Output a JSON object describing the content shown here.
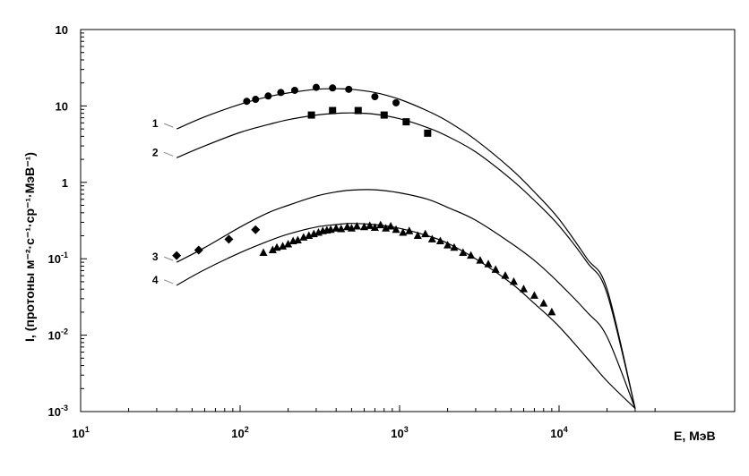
{
  "chart_data": {
    "type": "scatter",
    "title": "",
    "xlabel": "E, МэВ",
    "ylabel": "I, (протоны м⁻²·с⁻¹·ср⁻¹·МэВ⁻¹)",
    "xscale": "log",
    "yscale": "log",
    "xlim": [
      10,
      40000
    ],
    "ylim": [
      0.001,
      100
    ],
    "x_ticks": [
      {
        "value": 10,
        "base": "10",
        "exp": "1"
      },
      {
        "value": 100,
        "base": "10",
        "exp": "2"
      },
      {
        "value": 1000,
        "base": "10",
        "exp": "3"
      },
      {
        "value": 10000,
        "base": "10",
        "exp": "4"
      }
    ],
    "y_ticks": [
      {
        "value": 0.001,
        "base": "10",
        "exp": "-3"
      },
      {
        "value": 0.01,
        "base": "10",
        "exp": "-2"
      },
      {
        "value": 0.1,
        "base": "10",
        "exp": "-1"
      },
      {
        "value": 1,
        "base": "1",
        "exp": ""
      },
      {
        "value": 10,
        "base": "10",
        "exp": ""
      },
      {
        "value": 100,
        "base": "10",
        "exp": ""
      }
    ],
    "grid": false,
    "series": [
      {
        "label": "1",
        "marker": "circle",
        "curve": {
          "x": [
            40,
            60,
            100,
            150,
            200,
            300,
            400,
            500,
            700,
            1000,
            1500,
            2000,
            3000,
            5000,
            7000,
            10000,
            15000,
            20000,
            30000
          ],
          "y": [
            5.0,
            7.2,
            10.5,
            13.2,
            14.8,
            16.5,
            16.8,
            16.5,
            15.0,
            12.2,
            8.6,
            6.3,
            3.6,
            1.5,
            0.75,
            0.33,
            0.1,
            0.04,
            0.0011
          ]
        },
        "points": {
          "x": [
            110,
            125,
            150,
            180,
            220,
            300,
            380,
            480,
            700,
            950
          ],
          "y": [
            11.5,
            12.2,
            13.5,
            15.0,
            16.0,
            17.5,
            17.2,
            16.5,
            13.2,
            11.0
          ]
        }
      },
      {
        "label": "2",
        "marker": "square",
        "curve": {
          "x": [
            40,
            60,
            100,
            150,
            200,
            300,
            400,
            500,
            700,
            1000,
            1500,
            2000,
            3000,
            5000,
            7000,
            10000,
            15000,
            20000,
            30000
          ],
          "y": [
            2.1,
            3.0,
            4.5,
            5.7,
            6.6,
            7.6,
            8.0,
            8.1,
            7.8,
            6.8,
            5.2,
            4.0,
            2.5,
            1.1,
            0.58,
            0.27,
            0.09,
            0.035,
            0.0011
          ]
        },
        "points": {
          "x": [
            280,
            380,
            550,
            800,
            1100,
            1500
          ],
          "y": [
            7.6,
            8.7,
            8.7,
            7.6,
            6.2,
            4.4
          ]
        }
      },
      {
        "label": "3",
        "marker": "diamond",
        "curve": {
          "x": [
            40,
            60,
            100,
            150,
            200,
            300,
            400,
            500,
            700,
            1000,
            1500,
            2000,
            3000,
            5000,
            7000,
            10000,
            15000,
            20000,
            30000
          ],
          "y": [
            0.09,
            0.14,
            0.26,
            0.4,
            0.5,
            0.66,
            0.75,
            0.79,
            0.8,
            0.73,
            0.6,
            0.47,
            0.32,
            0.16,
            0.095,
            0.048,
            0.02,
            0.0095,
            0.0011
          ]
        },
        "points": {
          "x": [
            40,
            55,
            85,
            125
          ],
          "y": [
            0.11,
            0.13,
            0.18,
            0.24
          ]
        }
      },
      {
        "label": "4",
        "marker": "triangle",
        "curve": {
          "x": [
            40,
            60,
            100,
            150,
            200,
            300,
            400,
            500,
            700,
            1000,
            1500,
            2000,
            3000,
            5000,
            7000,
            10000,
            15000,
            20000,
            30000
          ],
          "y": [
            0.045,
            0.072,
            0.12,
            0.17,
            0.21,
            0.26,
            0.28,
            0.29,
            0.28,
            0.25,
            0.2,
            0.16,
            0.1,
            0.048,
            0.026,
            0.013,
            0.005,
            0.0025,
            0.0011
          ]
        },
        "points": {
          "x": [
            140,
            160,
            170,
            185,
            200,
            215,
            230,
            250,
            270,
            290,
            310,
            330,
            350,
            370,
            400,
            430,
            470,
            500,
            540,
            600,
            650,
            700,
            760,
            820,
            880,
            950,
            1050,
            1150,
            1300,
            1450,
            1600,
            1800,
            2000,
            2200,
            2500,
            2800,
            3200,
            3600,
            4000,
            4600,
            5200,
            6000,
            7000,
            8000,
            9000
          ],
          "y": [
            0.12,
            0.13,
            0.14,
            0.145,
            0.155,
            0.17,
            0.175,
            0.19,
            0.2,
            0.21,
            0.22,
            0.23,
            0.235,
            0.24,
            0.25,
            0.245,
            0.26,
            0.25,
            0.265,
            0.26,
            0.27,
            0.255,
            0.275,
            0.25,
            0.265,
            0.24,
            0.22,
            0.23,
            0.2,
            0.21,
            0.18,
            0.17,
            0.15,
            0.14,
            0.12,
            0.11,
            0.095,
            0.085,
            0.072,
            0.06,
            0.05,
            0.04,
            0.033,
            0.026,
            0.02
          ]
        }
      }
    ]
  }
}
